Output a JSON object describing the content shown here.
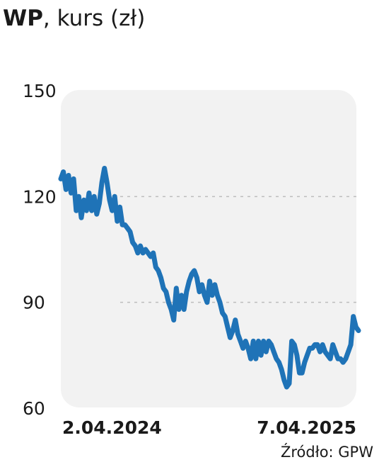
{
  "header": {
    "ticker": "WP",
    "subtitle": ", kurs (zł)"
  },
  "source": "Źródło: GPW",
  "colors": {
    "line": "#1f73b7",
    "plot_background": "#f2f2f2",
    "grid": "#bdbdbd"
  },
  "chart_data": {
    "type": "line",
    "title": "WP, kurs (zł)",
    "xlabel": "",
    "ylabel": "",
    "ylim": [
      60,
      150
    ],
    "yticks": [
      "150",
      "120",
      "90",
      "60"
    ],
    "ytick_values": [
      150,
      120,
      90,
      60
    ],
    "xticks": [
      "2.04.2024",
      "7.04.2025"
    ],
    "grid": "horizontal dashed at 120 and 90",
    "x_start": "2.04.2024",
    "x_end": "7.04.2025",
    "series": [
      {
        "values": [
          125,
          127,
          122,
          126,
          121,
          125,
          116,
          120,
          114,
          119,
          116,
          121,
          116,
          120,
          115,
          118,
          124,
          128,
          124,
          119,
          116,
          120,
          113,
          117,
          112,
          112,
          111,
          110,
          107,
          106,
          104,
          106,
          104,
          105,
          104,
          103,
          104,
          100,
          99,
          97,
          94,
          93,
          90,
          88,
          85,
          94,
          88,
          92,
          88,
          93,
          96,
          98,
          99,
          97,
          93,
          95,
          92,
          90,
          96,
          92,
          95,
          92,
          90,
          87,
          86,
          83,
          80,
          82,
          85,
          81,
          79,
          77,
          79,
          77,
          74,
          79,
          74,
          79,
          75,
          79,
          76,
          79,
          78,
          76,
          74,
          73,
          71,
          68,
          66,
          67,
          79,
          78,
          75,
          70,
          70,
          73,
          75,
          77,
          77,
          78,
          78,
          76,
          78,
          76,
          75,
          74,
          78,
          76,
          74,
          74,
          73,
          74,
          76,
          78,
          86,
          83,
          82
        ]
      }
    ]
  }
}
